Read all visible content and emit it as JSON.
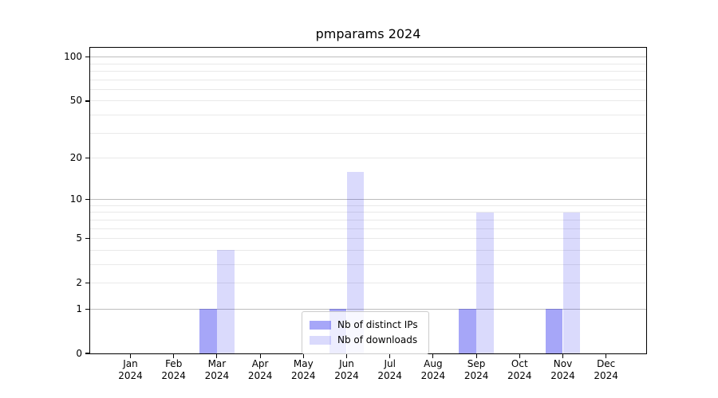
{
  "chart_data": {
    "type": "bar",
    "title": "pmparams 2024",
    "categories": [
      "Jan",
      "Feb",
      "Mar",
      "Apr",
      "May",
      "Jun",
      "Jul",
      "Aug",
      "Sep",
      "Oct",
      "Nov",
      "Dec"
    ],
    "x_tick_second_line": "2024",
    "series": [
      {
        "name": "Nb of distinct IPs",
        "color": "rgba(0, 0, 235, 0.35)",
        "values": [
          0,
          0,
          1,
          0,
          0,
          1,
          0,
          0,
          1,
          0,
          1,
          0
        ]
      },
      {
        "name": "Nb of downloads",
        "color": "rgba(0, 0, 235, 0.145)",
        "values": [
          0,
          0,
          4,
          0,
          0,
          16,
          0,
          0,
          8,
          0,
          8,
          0
        ]
      }
    ],
    "xlabel": "",
    "ylabel": "",
    "yscale": "log1p",
    "ylim": [
      0,
      116
    ],
    "yticks": [
      0,
      1,
      2,
      5,
      10,
      20,
      50,
      100
    ],
    "gridlines": {
      "major": [
        1,
        10,
        100
      ],
      "minor": [
        2,
        3,
        4,
        5,
        6,
        7,
        8,
        9,
        20,
        30,
        40,
        50,
        60,
        70,
        80,
        90
      ]
    },
    "legend": {
      "position": "lower center",
      "entries": [
        "Nb of distinct IPs",
        "Nb of downloads"
      ]
    },
    "colors": {
      "major_grid": "#bdbdbd",
      "minor_grid": "#e9e9e9",
      "spine": "#000000",
      "text": "#000000",
      "legend_border": "#cccccc",
      "legend_background": "rgba(255,255,255,0.8)"
    }
  }
}
